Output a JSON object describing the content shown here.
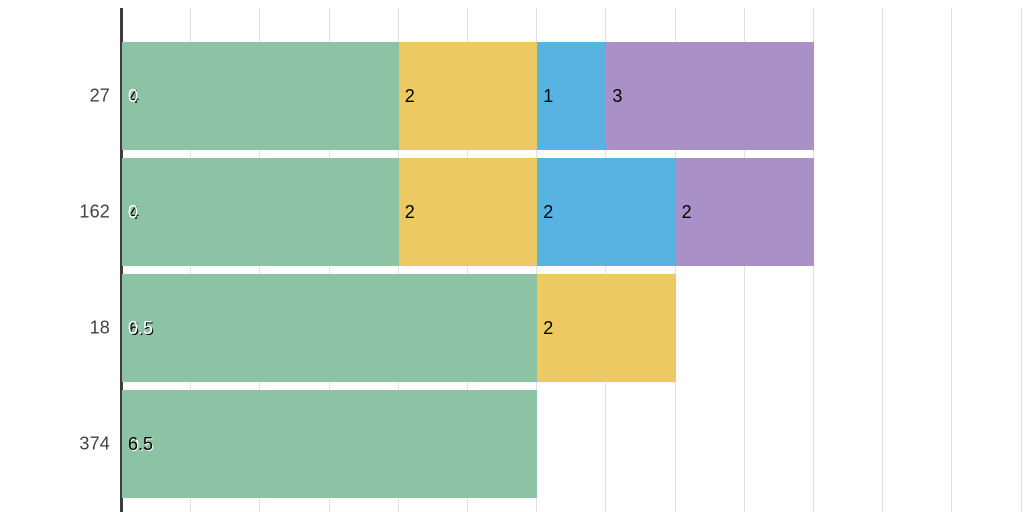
{
  "chart_data": {
    "type": "bar",
    "orientation": "horizontal-stacked",
    "title": "",
    "xlabel": "",
    "ylabel": "",
    "categories": [
      "27",
      "162",
      "18",
      "374"
    ],
    "x_axis": {
      "min": 0,
      "max": 13,
      "gridline_step": 1,
      "tick_labels_visible": false,
      "grid": true
    },
    "palette": {
      "green": "#8cc3a5",
      "yellow": "#edc963",
      "blue": "#58b3e1",
      "purple": "#a990c7"
    },
    "colors": {
      "axis": "#3d3d3d",
      "gridline": "#e1e1e1",
      "tick_text": "#424242",
      "label_black": "#000000",
      "label_white": "#ffffff"
    },
    "rows": [
      {
        "category": "27",
        "segments": [
          {
            "color": "green",
            "units": 4,
            "label": "4",
            "overlay_label": "0",
            "overlay_on_top": true
          },
          {
            "color": "yellow",
            "units": 2,
            "label": "2"
          },
          {
            "color": "blue",
            "units": 1,
            "label": "1"
          },
          {
            "color": "purple",
            "units": 3,
            "label": "3"
          }
        ]
      },
      {
        "category": "162",
        "segments": [
          {
            "color": "green",
            "units": 4,
            "label": "4",
            "overlay_label": "0",
            "overlay_on_top": true
          },
          {
            "color": "yellow",
            "units": 2,
            "label": "2"
          },
          {
            "color": "blue",
            "units": 2,
            "label": "2"
          },
          {
            "color": "purple",
            "units": 2,
            "label": "2"
          }
        ]
      },
      {
        "category": "18",
        "segments": [
          {
            "color": "green",
            "units": 6,
            "label": "6.5",
            "overlay_label": "0.5",
            "overlay_on_top": true
          },
          {
            "color": "yellow",
            "units": 2,
            "label": "2"
          }
        ]
      },
      {
        "category": "374",
        "segments": [
          {
            "color": "green",
            "units": 6,
            "label": "6.5",
            "overlay_label": "0.5",
            "overlay_on_top": false
          }
        ]
      }
    ]
  }
}
